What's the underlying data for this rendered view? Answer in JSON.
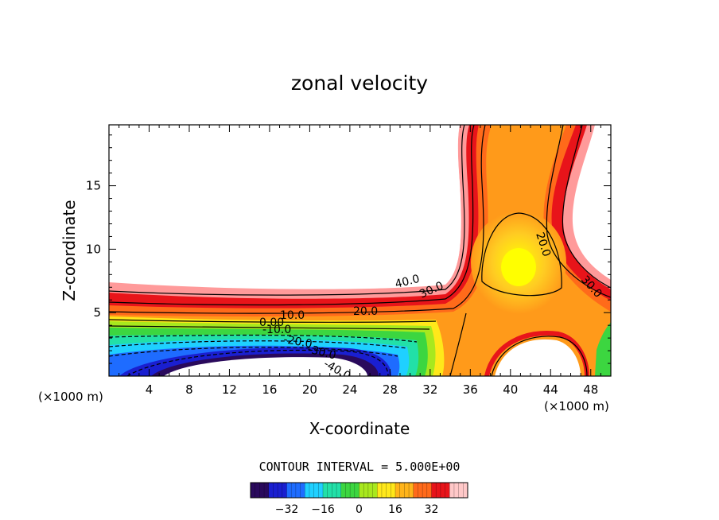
{
  "chart_data": {
    "type": "contour",
    "title": "zonal velocity",
    "xlabel": "X-coordinate",
    "ylabel": "Z-coordinate",
    "x_unit_left": "(×1000 m)",
    "x_unit_right": "(×1000 m)",
    "xlim": [
      0,
      50
    ],
    "ylim": [
      0,
      19.8
    ],
    "xticks": [
      4,
      8,
      12,
      16,
      20,
      24,
      28,
      32,
      36,
      40,
      44,
      48
    ],
    "yticks": [
      5,
      10,
      15
    ],
    "contour_labels": [
      "40.0",
      "30.0",
      "20.0",
      "10.0",
      "0.00",
      "-10.0",
      "-20.0",
      "-30.0",
      "-40.0",
      "20.0",
      "30.0",
      "20.0"
    ],
    "contour_interval_text": "CONTOUR INTERVAL = 5.000E+00",
    "colorbar": {
      "ticks": [
        -32,
        -16,
        0,
        16,
        32
      ],
      "range": [
        -48,
        48
      ],
      "colors": [
        "#2a0a5c",
        "#1a1fd0",
        "#1e6cff",
        "#1fd0ff",
        "#22e0a8",
        "#3cd640",
        "#a8e81e",
        "#ffe81a",
        "#ffb41a",
        "#ff6a1a",
        "#e8141a",
        "#ffc8c8"
      ]
    },
    "grid": false,
    "legend": "none"
  }
}
